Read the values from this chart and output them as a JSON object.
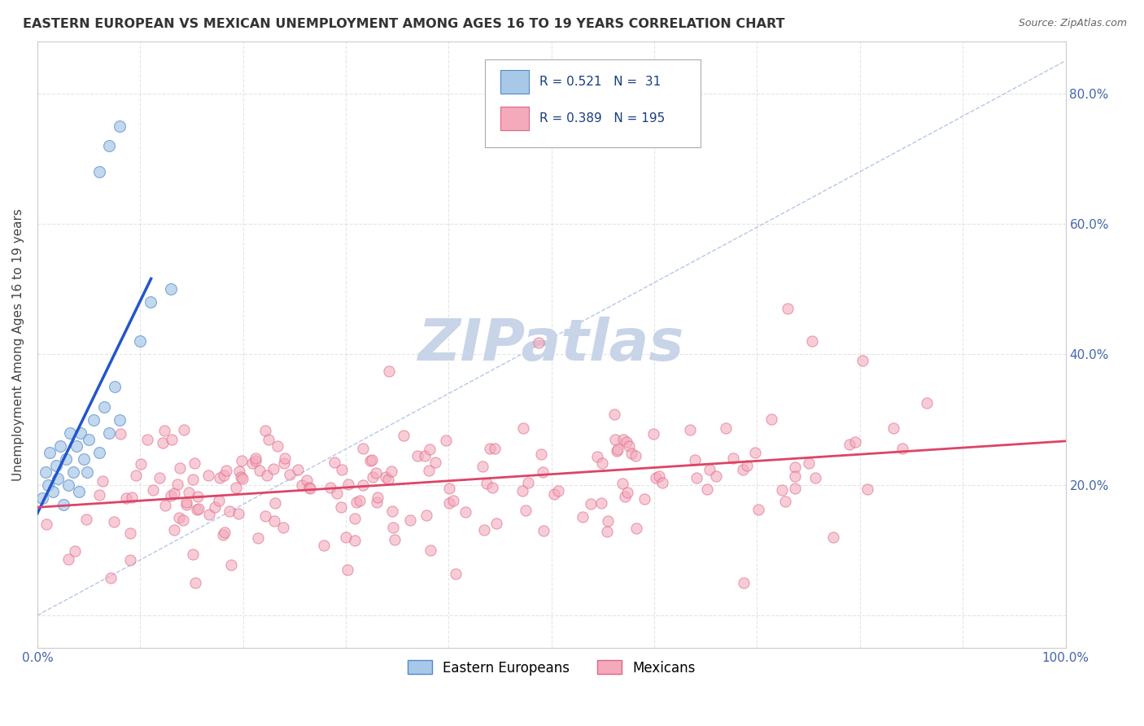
{
  "title": "EASTERN EUROPEAN VS MEXICAN UNEMPLOYMENT AMONG AGES 16 TO 19 YEARS CORRELATION CHART",
  "source": "Source: ZipAtlas.com",
  "ylabel": "Unemployment Among Ages 16 to 19 years",
  "xlim": [
    0,
    1.0
  ],
  "ylim": [
    -0.05,
    0.88
  ],
  "xticks": [
    0.0,
    0.1,
    0.2,
    0.3,
    0.4,
    0.5,
    0.6,
    0.7,
    0.8,
    0.9,
    1.0
  ],
  "yticks": [
    0.0,
    0.2,
    0.4,
    0.6,
    0.8
  ],
  "xticklabels": [
    "0.0%",
    "",
    "",
    "",
    "",
    "",
    "",
    "",
    "",
    "",
    "100.0%"
  ],
  "yticklabels_right": [
    "",
    "20.0%",
    "40.0%",
    "60.0%",
    "80.0%"
  ],
  "R_eastern": 0.521,
  "N_eastern": 31,
  "R_mexican": 0.389,
  "N_mexican": 195,
  "eastern_color": "#a8c8e8",
  "eastern_edge": "#5588cc",
  "mexican_color": "#f4aabb",
  "mexican_edge": "#dd6688",
  "eastern_line_color": "#2255cc",
  "mexican_line_color": "#dd4466",
  "ref_line_color": "#99aedd",
  "watermark_color": "#c8d4e8",
  "legend_label_eastern": "Eastern Europeans",
  "legend_label_mexican": "Mexicans",
  "background": "#ffffff",
  "grid_color": "#cccccc",
  "tick_color": "#4466aa",
  "title_color": "#333333"
}
